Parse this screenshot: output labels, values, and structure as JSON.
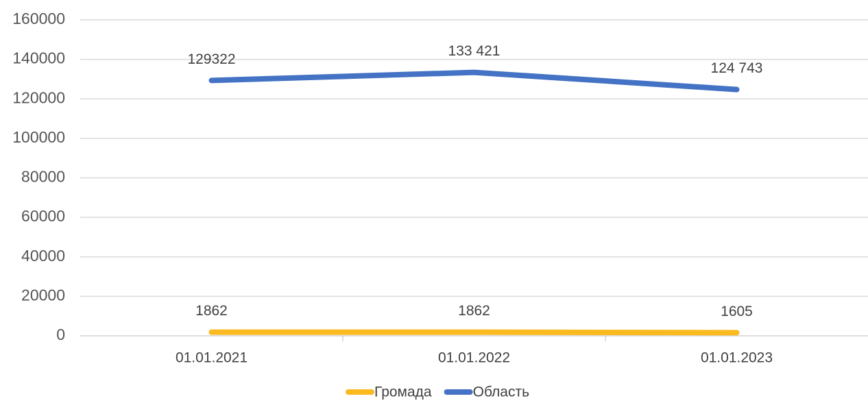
{
  "chart_data": {
    "type": "line",
    "categories": [
      "01.01.2021",
      "01.01.2022",
      "01.01.2023"
    ],
    "series": [
      {
        "name": "Громада",
        "color": "#fbba1f",
        "values": [
          1862,
          1862,
          1605
        ]
      },
      {
        "name": "Область",
        "color": "#4472c4",
        "values": [
          129322,
          133421,
          124743
        ],
        "value_labels": [
          "129322",
          "133 421",
          "124 743"
        ]
      }
    ],
    "ylim": [
      0,
      160000
    ],
    "yticks": [
      0,
      20000,
      40000,
      60000,
      80000,
      100000,
      120000,
      140000,
      160000
    ],
    "grid": true,
    "legend": "bottom"
  }
}
